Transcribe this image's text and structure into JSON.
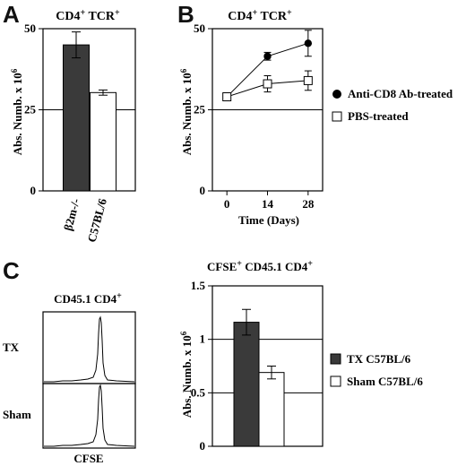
{
  "panel_labels": [
    "A",
    "B",
    "C"
  ],
  "chart_data": [
    {
      "panel": "A",
      "type": "bar",
      "title": "CD4+ TCR+",
      "ylabel": "Abs. Numb. x 10^6",
      "ylim": [
        0,
        50
      ],
      "yticks": [
        "0",
        "25",
        "50"
      ],
      "reference_line": 25,
      "categories": [
        "β2m-/-",
        "C57BL/6"
      ],
      "values": [
        45,
        30.3
      ],
      "errors": [
        4,
        0.8
      ],
      "colors": [
        "#3a3a3a",
        "#ffffff"
      ]
    },
    {
      "panel": "B",
      "type": "line",
      "title": "CD4+ TCR+",
      "ylabel": "Abs. Numb. x 10^6",
      "xlabel": "Time (Days)",
      "ylim": [
        0,
        50
      ],
      "yticks": [
        "0",
        "25",
        "50"
      ],
      "xticks": [
        "0",
        "14",
        "28"
      ],
      "reference_line": 25,
      "x": [
        0,
        14,
        28
      ],
      "series": [
        {
          "name": "Anti-CD8 Ab-treated",
          "marker": "filled-circle",
          "values": [
            29,
            41.5,
            45.5
          ],
          "errors": [
            1.2,
            1.2,
            4
          ]
        },
        {
          "name": "PBS-treated",
          "marker": "open-square",
          "values": [
            29,
            33,
            34
          ],
          "errors": [
            1.2,
            2.5,
            3
          ]
        }
      ],
      "legend": "right"
    },
    {
      "panel": "C",
      "type": "histogram",
      "title": "CD45.1 CD4+",
      "xlabel": "CFSE",
      "rows": [
        "TX",
        "Sham"
      ]
    },
    {
      "panel": "C",
      "type": "bar",
      "title": "CFSE+ CD45.1 CD4+",
      "ylabel": "Abs. Numb. x 10^6",
      "ylim": [
        0,
        1.5
      ],
      "yticks": [
        "0",
        "0.5",
        "1",
        "1.5"
      ],
      "reference_lines": [
        0.5,
        1
      ],
      "categories": [
        "TX C57BL/6",
        "Sham C57BL/6"
      ],
      "values": [
        1.16,
        0.69
      ],
      "errors": [
        0.12,
        0.06
      ],
      "colors": [
        "#3a3a3a",
        "#ffffff"
      ],
      "legend": "right"
    }
  ]
}
